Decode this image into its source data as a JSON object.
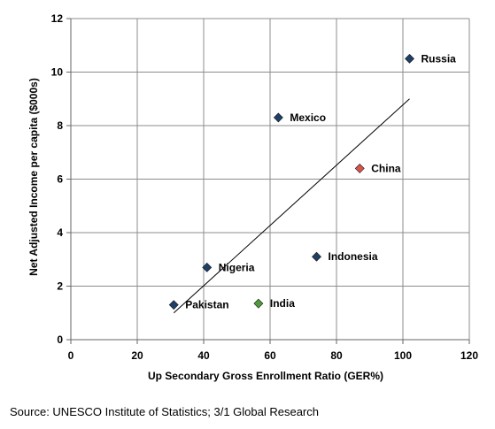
{
  "chart_data": {
    "type": "scatter",
    "title": "",
    "xlabel": "Up Secondary Gross Enrollment Ratio (GER%)",
    "ylabel": "Net Adjusted Income per capita ($000s)",
    "xlim": [
      0,
      120
    ],
    "ylim": [
      0,
      12
    ],
    "xticks": [
      0,
      20,
      40,
      60,
      80,
      100,
      120
    ],
    "yticks": [
      0,
      2,
      4,
      6,
      8,
      10,
      12
    ],
    "grid": "vertical and horizontal",
    "legend": "none",
    "points": [
      {
        "label": "Russia",
        "x": 102,
        "y": 10.5,
        "color": "#1f3f66"
      },
      {
        "label": "Mexico",
        "x": 62.5,
        "y": 8.3,
        "color": "#1f3f66"
      },
      {
        "label": "China",
        "x": 87,
        "y": 6.4,
        "color": "#d9534f"
      },
      {
        "label": "Indonesia",
        "x": 74,
        "y": 3.1,
        "color": "#1f3f66"
      },
      {
        "label": "Nigeria",
        "x": 41,
        "y": 2.7,
        "color": "#1f3f66"
      },
      {
        "label": "India",
        "x": 56.5,
        "y": 1.35,
        "color": "#4f9a3a"
      },
      {
        "label": "Pakistan",
        "x": 31,
        "y": 1.3,
        "color": "#1f3f66"
      }
    ],
    "trendline": {
      "x": [
        31,
        102
      ],
      "y": [
        1.0,
        9.0
      ]
    }
  },
  "source": "Source: UNESCO Institute of Statistics; 3/1 Global Research"
}
